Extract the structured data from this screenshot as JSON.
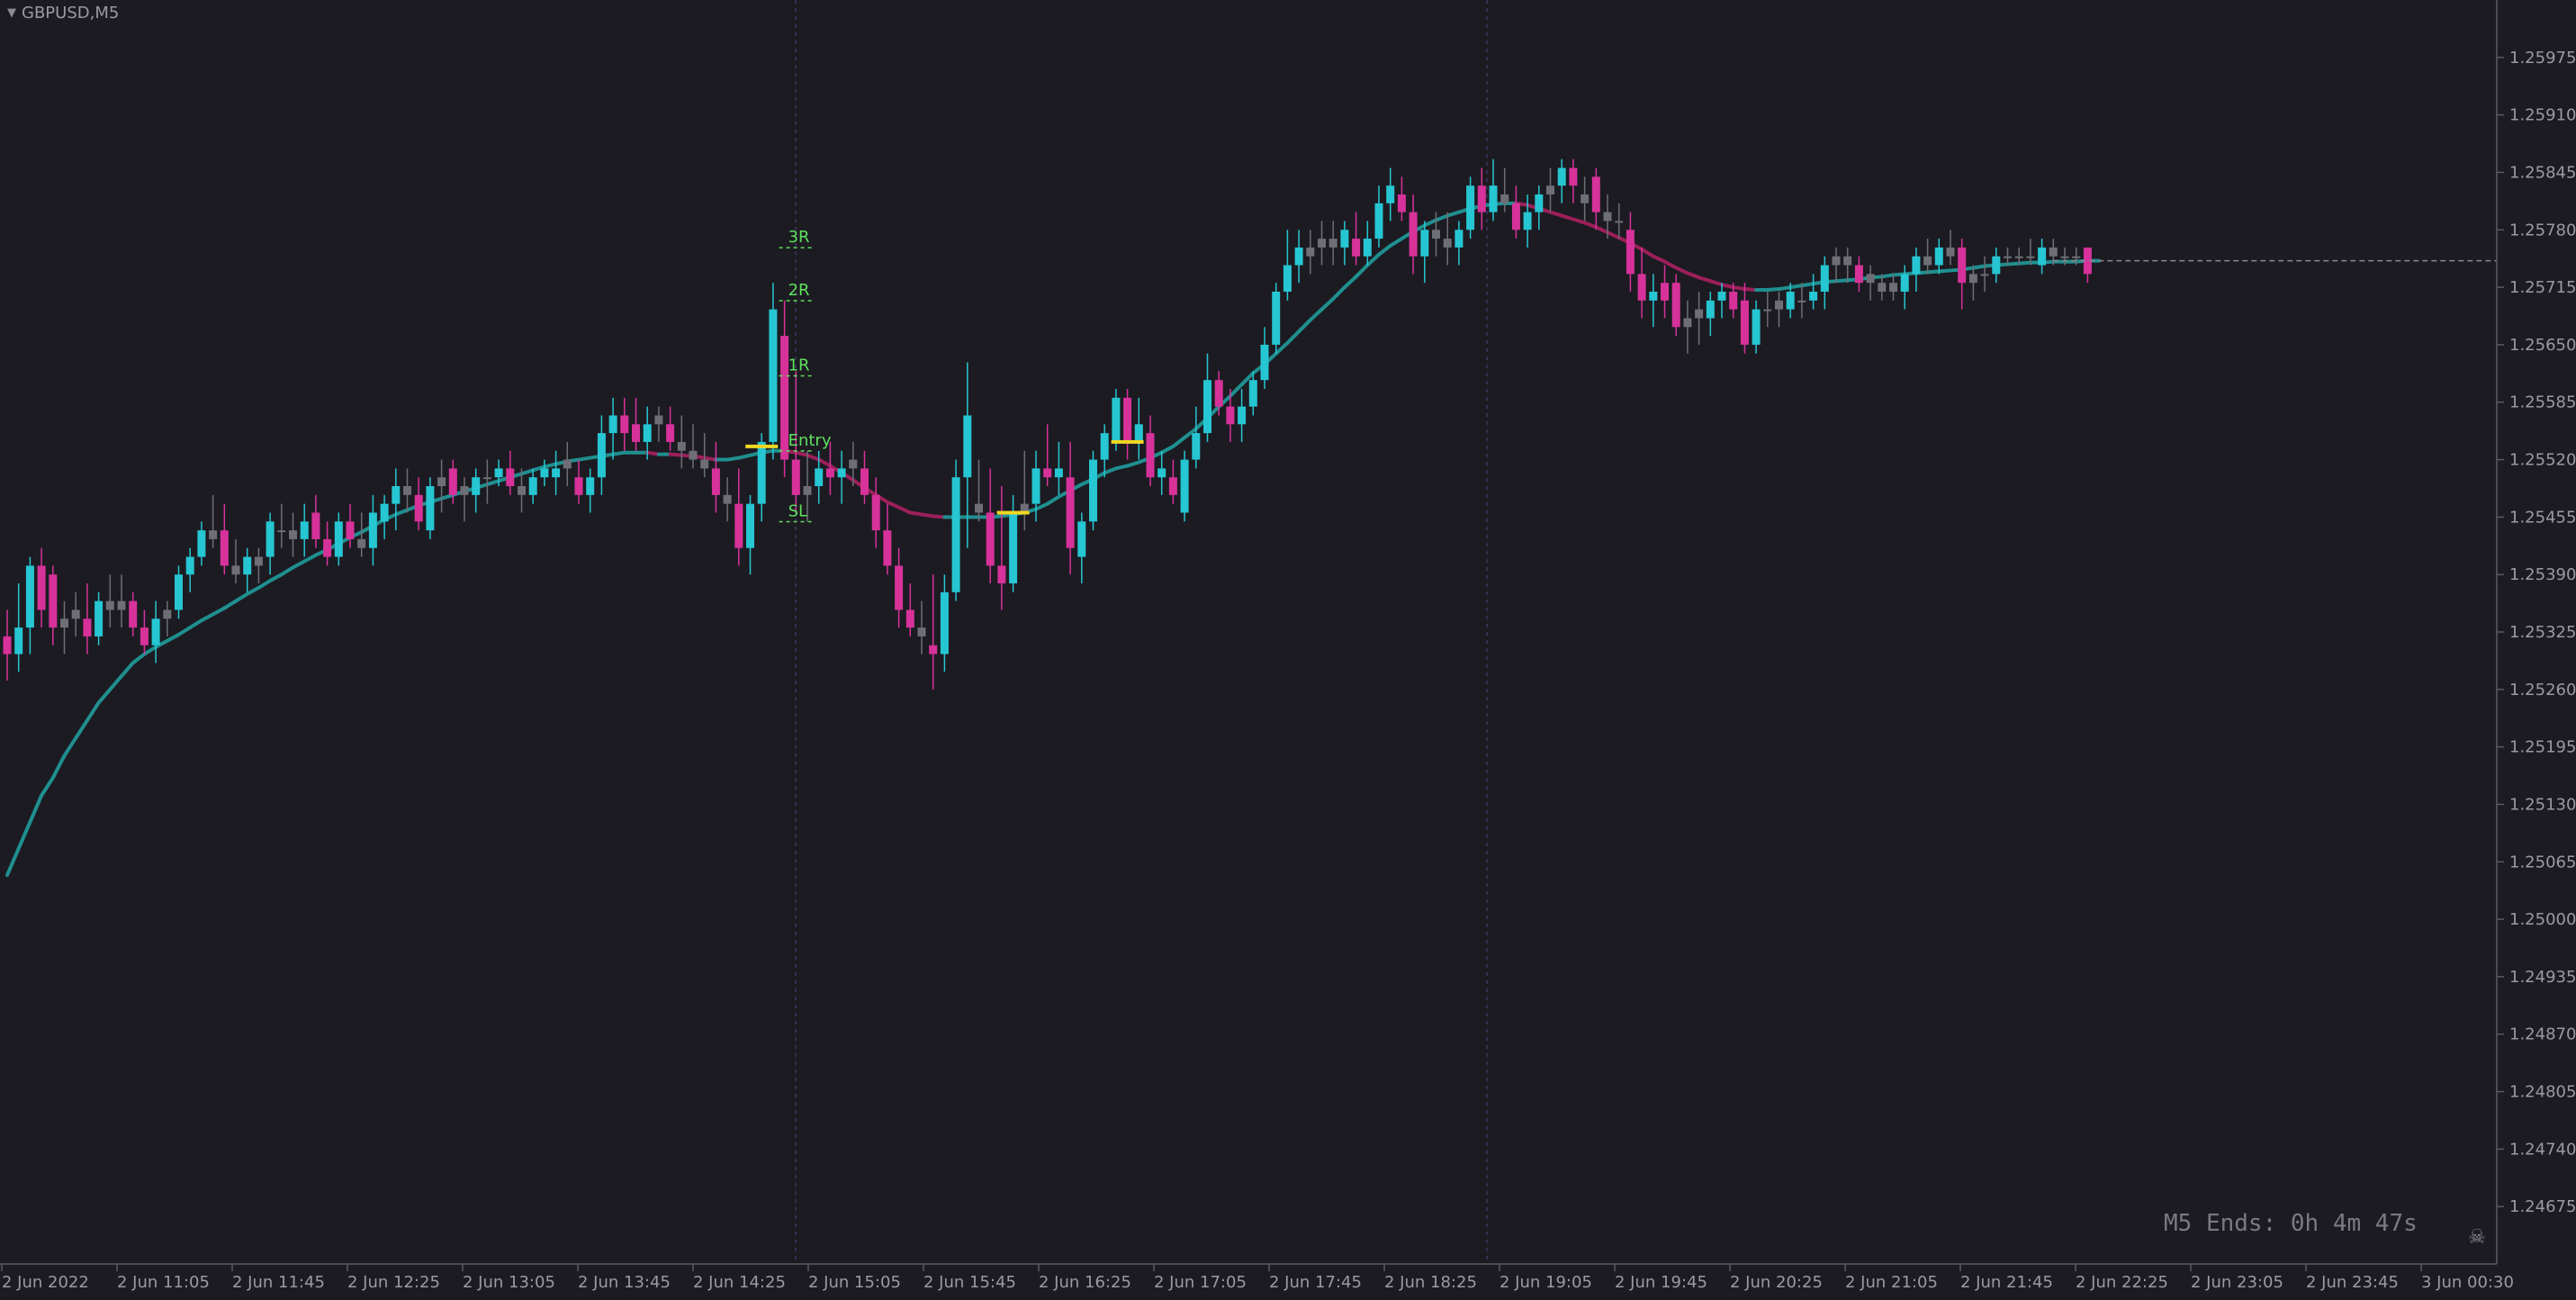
{
  "window": {
    "symbol": "GBPUSD,M5",
    "timer": "M5 Ends: 0h 4m 47s",
    "corner_icon": "skull-crossbones-icon"
  },
  "chart_data": {
    "type": "candlestick",
    "ylim": [
      1.2461,
      1.2604
    ],
    "price_labels": [
      "1.25975",
      "1.25910",
      "1.25845",
      "1.25780",
      "1.25715",
      "1.25650",
      "1.25585",
      "1.25520",
      "1.25455",
      "1.25390",
      "1.25325",
      "1.25260",
      "1.25195",
      "1.25130",
      "1.25065",
      "1.25000",
      "1.24935",
      "1.24870",
      "1.24805",
      "1.24740",
      "1.24675"
    ],
    "time_labels": [
      "2 Jun 2022",
      "2 Jun 11:05",
      "2 Jun 11:45",
      "2 Jun 12:25",
      "2 Jun 13:05",
      "2 Jun 13:45",
      "2 Jun 14:25",
      "2 Jun 15:05",
      "2 Jun 15:45",
      "2 Jun 16:25",
      "2 Jun 17:05",
      "2 Jun 17:45",
      "2 Jun 18:25",
      "2 Jun 19:05",
      "2 Jun 19:45",
      "2 Jun 20:25",
      "2 Jun 21:05",
      "2 Jun 21:45",
      "2 Jun 22:25",
      "2 Jun 23:05",
      "2 Jun 23:45",
      "3 Jun 00:30"
    ],
    "grid": false,
    "colors": {
      "bull": "#26c6d2",
      "bear": "#d6329a",
      "neutral": "#6e6e76",
      "ma_up": "#1f8f8f",
      "ma_down": "#9c1f5a",
      "level": "#f0d722",
      "target": "#5ee05e"
    },
    "candles": [
      [
        1.2532,
        1.2535,
        1.2527,
        1.253
      ],
      [
        1.253,
        1.2538,
        1.2528,
        1.2533
      ],
      [
        1.2533,
        1.2541,
        1.253,
        1.254
      ],
      [
        1.254,
        1.2542,
        1.2533,
        1.2535
      ],
      [
        1.2539,
        1.254,
        1.2531,
        1.2533
      ],
      [
        1.2533,
        1.2536,
        1.253,
        1.2534
      ],
      [
        1.2535,
        1.2537,
        1.2532,
        1.2534
      ],
      [
        1.2534,
        1.2538,
        1.253,
        1.2532
      ],
      [
        1.2532,
        1.2537,
        1.2531,
        1.2536
      ],
      [
        1.2536,
        1.2539,
        1.2533,
        1.2535
      ],
      [
        1.2535,
        1.2539,
        1.2533,
        1.2536
      ],
      [
        1.2536,
        1.2537,
        1.2532,
        1.2533
      ],
      [
        1.2533,
        1.2535,
        1.253,
        1.2531
      ],
      [
        1.2531,
        1.2536,
        1.2529,
        1.2534
      ],
      [
        1.2534,
        1.2536,
        1.2532,
        1.2535
      ],
      [
        1.2535,
        1.254,
        1.2534,
        1.2539
      ],
      [
        1.2539,
        1.2542,
        1.2537,
        1.2541
      ],
      [
        1.2541,
        1.2545,
        1.254,
        1.2544
      ],
      [
        1.2544,
        1.2548,
        1.2542,
        1.2543
      ],
      [
        1.2544,
        1.2547,
        1.2539,
        1.254
      ],
      [
        1.254,
        1.2543,
        1.2538,
        1.2539
      ],
      [
        1.2539,
        1.2542,
        1.2537,
        1.2541
      ],
      [
        1.254,
        1.2542,
        1.2538,
        1.2541
      ],
      [
        1.2541,
        1.2546,
        1.2539,
        1.2545
      ],
      [
        1.2544,
        1.2547,
        1.2542,
        1.2544
      ],
      [
        1.2544,
        1.2546,
        1.2541,
        1.2543
      ],
      [
        1.2543,
        1.2547,
        1.2541,
        1.2545
      ],
      [
        1.2546,
        1.2548,
        1.2542,
        1.2543
      ],
      [
        1.2543,
        1.2545,
        1.254,
        1.2541
      ],
      [
        1.2541,
        1.2546,
        1.254,
        1.2545
      ],
      [
        1.2545,
        1.2547,
        1.2542,
        1.2543
      ],
      [
        1.2543,
        1.2546,
        1.2541,
        1.2542
      ],
      [
        1.2542,
        1.2548,
        1.254,
        1.2546
      ],
      [
        1.2545,
        1.2548,
        1.2543,
        1.2547
      ],
      [
        1.2547,
        1.2551,
        1.2544,
        1.2549
      ],
      [
        1.2549,
        1.2551,
        1.2546,
        1.2548
      ],
      [
        1.2548,
        1.255,
        1.2544,
        1.2545
      ],
      [
        1.2544,
        1.255,
        1.2543,
        1.2549
      ],
      [
        1.2549,
        1.2552,
        1.2546,
        1.255
      ],
      [
        1.2551,
        1.2552,
        1.2547,
        1.2548
      ],
      [
        1.2549,
        1.255,
        1.2545,
        1.2548
      ],
      [
        1.2548,
        1.2551,
        1.2546,
        1.255
      ],
      [
        1.255,
        1.2552,
        1.2547,
        1.255
      ],
      [
        1.255,
        1.2552,
        1.2549,
        1.2551
      ],
      [
        1.2551,
        1.2553,
        1.2548,
        1.2549
      ],
      [
        1.2549,
        1.2551,
        1.2546,
        1.2548
      ],
      [
        1.2548,
        1.2551,
        1.2547,
        1.255
      ],
      [
        1.255,
        1.2552,
        1.2549,
        1.2551
      ],
      [
        1.255,
        1.2553,
        1.2548,
        1.2551
      ],
      [
        1.2551,
        1.2554,
        1.2549,
        1.2552
      ],
      [
        1.255,
        1.2552,
        1.2547,
        1.2548
      ],
      [
        1.2548,
        1.2551,
        1.2546,
        1.255
      ],
      [
        1.255,
        1.2557,
        1.2548,
        1.2555
      ],
      [
        1.2555,
        1.2559,
        1.2552,
        1.2557
      ],
      [
        1.2557,
        1.2559,
        1.2553,
        1.2555
      ],
      [
        1.2556,
        1.2559,
        1.2553,
        1.2554
      ],
      [
        1.2554,
        1.2558,
        1.2552,
        1.2556
      ],
      [
        1.2556,
        1.2558,
        1.2554,
        1.2557
      ],
      [
        1.2556,
        1.2558,
        1.2553,
        1.2554
      ],
      [
        1.2554,
        1.2557,
        1.2551,
        1.2553
      ],
      [
        1.2553,
        1.2556,
        1.2551,
        1.2552
      ],
      [
        1.2552,
        1.2555,
        1.255,
        1.2551
      ],
      [
        1.2551,
        1.2554,
        1.2546,
        1.2548
      ],
      [
        1.2548,
        1.255,
        1.2545,
        1.2547
      ],
      [
        1.2547,
        1.2551,
        1.254,
        1.2542
      ],
      [
        1.2542,
        1.2548,
        1.2539,
        1.2547
      ],
      [
        1.2547,
        1.2555,
        1.2545,
        1.2554
      ],
      [
        1.2554,
        1.2572,
        1.2552,
        1.2569
      ],
      [
        1.2566,
        1.257,
        1.255,
        1.2552
      ],
      [
        1.2552,
        1.2562,
        1.2546,
        1.2548
      ],
      [
        1.2548,
        1.2553,
        1.2545,
        1.2549
      ],
      [
        1.2549,
        1.2553,
        1.2547,
        1.2551
      ],
      [
        1.2551,
        1.2554,
        1.2548,
        1.255
      ],
      [
        1.255,
        1.2553,
        1.2547,
        1.2551
      ],
      [
        1.2552,
        1.2554,
        1.2549,
        1.2551
      ],
      [
        1.2551,
        1.2553,
        1.2547,
        1.2548
      ],
      [
        1.2548,
        1.255,
        1.2542,
        1.2544
      ],
      [
        1.2544,
        1.2547,
        1.2539,
        1.254
      ],
      [
        1.254,
        1.2542,
        1.2533,
        1.2535
      ],
      [
        1.2535,
        1.2538,
        1.2532,
        1.2533
      ],
      [
        1.2533,
        1.2536,
        1.253,
        1.2532
      ],
      [
        1.2531,
        1.2539,
        1.2526,
        1.253
      ],
      [
        1.253,
        1.2539,
        1.2528,
        1.2537
      ],
      [
        1.2537,
        1.2552,
        1.2536,
        1.255
      ],
      [
        1.255,
        1.2563,
        1.2542,
        1.2557
      ],
      [
        1.2547,
        1.2552,
        1.2545,
        1.2546
      ],
      [
        1.2546,
        1.2551,
        1.2538,
        1.254
      ],
      [
        1.254,
        1.2549,
        1.2535,
        1.2538
      ],
      [
        1.2538,
        1.2548,
        1.2537,
        1.2546
      ],
      [
        1.2546,
        1.2553,
        1.2544,
        1.2547
      ],
      [
        1.2547,
        1.2553,
        1.2545,
        1.2551
      ],
      [
        1.2551,
        1.2556,
        1.2549,
        1.255
      ],
      [
        1.255,
        1.2554,
        1.2548,
        1.2551
      ],
      [
        1.255,
        1.2554,
        1.2539,
        1.2542
      ],
      [
        1.2541,
        1.2546,
        1.2538,
        1.2545
      ],
      [
        1.2545,
        1.2553,
        1.2544,
        1.2552
      ],
      [
        1.2552,
        1.2556,
        1.255,
        1.2555
      ],
      [
        1.2554,
        1.256,
        1.2553,
        1.2559
      ],
      [
        1.2559,
        1.256,
        1.2552,
        1.2554
      ],
      [
        1.2554,
        1.2559,
        1.2552,
        1.2556
      ],
      [
        1.2555,
        1.2557,
        1.2549,
        1.255
      ],
      [
        1.255,
        1.2553,
        1.2548,
        1.2551
      ],
      [
        1.255,
        1.2552,
        1.2547,
        1.2548
      ],
      [
        1.2546,
        1.2553,
        1.2545,
        1.2552
      ],
      [
        1.2552,
        1.2558,
        1.2551,
        1.2555
      ],
      [
        1.2555,
        1.2564,
        1.2554,
        1.2561
      ],
      [
        1.2561,
        1.2562,
        1.2557,
        1.2558
      ],
      [
        1.2558,
        1.256,
        1.2554,
        1.2556
      ],
      [
        1.2556,
        1.256,
        1.2554,
        1.2558
      ],
      [
        1.2558,
        1.2562,
        1.2557,
        1.2561
      ],
      [
        1.2561,
        1.2567,
        1.256,
        1.2565
      ],
      [
        1.2565,
        1.2572,
        1.2564,
        1.2571
      ],
      [
        1.2571,
        1.2578,
        1.257,
        1.2574
      ],
      [
        1.2574,
        1.2578,
        1.2572,
        1.2576
      ],
      [
        1.2575,
        1.2578,
        1.2573,
        1.2576
      ],
      [
        1.2576,
        1.2579,
        1.2574,
        1.2577
      ],
      [
        1.2577,
        1.2579,
        1.2574,
        1.2576
      ],
      [
        1.2576,
        1.2579,
        1.2574,
        1.2578
      ],
      [
        1.2577,
        1.258,
        1.2574,
        1.2575
      ],
      [
        1.2575,
        1.2579,
        1.2574,
        1.2577
      ],
      [
        1.2577,
        1.2583,
        1.2576,
        1.2581
      ],
      [
        1.2581,
        1.2585,
        1.2579,
        1.2583
      ],
      [
        1.2582,
        1.2584,
        1.2579,
        1.258
      ],
      [
        1.258,
        1.2582,
        1.2573,
        1.2575
      ],
      [
        1.2575,
        1.2579,
        1.2572,
        1.2578
      ],
      [
        1.2578,
        1.258,
        1.2575,
        1.2577
      ],
      [
        1.2577,
        1.258,
        1.2574,
        1.2576
      ],
      [
        1.2576,
        1.2579,
        1.2574,
        1.2578
      ],
      [
        1.2578,
        1.2584,
        1.2577,
        1.2583
      ],
      [
        1.2583,
        1.2585,
        1.2578,
        1.258
      ],
      [
        1.258,
        1.2586,
        1.2579,
        1.2583
      ],
      [
        1.2582,
        1.2585,
        1.258,
        1.2581
      ],
      [
        1.2581,
        1.2583,
        1.2577,
        1.2578
      ],
      [
        1.2578,
        1.2582,
        1.2576,
        1.258
      ],
      [
        1.258,
        1.2583,
        1.2578,
        1.2582
      ],
      [
        1.2583,
        1.2585,
        1.258,
        1.2582
      ],
      [
        1.2583,
        1.2586,
        1.2581,
        1.2585
      ],
      [
        1.2585,
        1.2586,
        1.2581,
        1.2583
      ],
      [
        1.2582,
        1.2584,
        1.2579,
        1.2581
      ],
      [
        1.2584,
        1.2585,
        1.2578,
        1.258
      ],
      [
        1.258,
        1.2582,
        1.2577,
        1.2579
      ],
      [
        1.2579,
        1.2581,
        1.2577,
        1.2579
      ],
      [
        1.2578,
        1.258,
        1.2571,
        1.2573
      ],
      [
        1.2573,
        1.2576,
        1.2568,
        1.257
      ],
      [
        1.257,
        1.2573,
        1.2567,
        1.2571
      ],
      [
        1.2572,
        1.2574,
        1.2568,
        1.257
      ],
      [
        1.2572,
        1.2573,
        1.2566,
        1.2567
      ],
      [
        1.2567,
        1.257,
        1.2564,
        1.2568
      ],
      [
        1.2568,
        1.2571,
        1.2565,
        1.2569
      ],
      [
        1.2568,
        1.2571,
        1.2566,
        1.257
      ],
      [
        1.257,
        1.2572,
        1.2568,
        1.2571
      ],
      [
        1.2571,
        1.2572,
        1.2568,
        1.2569
      ],
      [
        1.257,
        1.2572,
        1.2564,
        1.2565
      ],
      [
        1.2565,
        1.257,
        1.2564,
        1.2569
      ],
      [
        1.2569,
        1.2571,
        1.2567,
        1.2569
      ],
      [
        1.2569,
        1.2571,
        1.2567,
        1.257
      ],
      [
        1.2569,
        1.2572,
        1.2568,
        1.2571
      ],
      [
        1.257,
        1.2572,
        1.2568,
        1.257
      ],
      [
        1.257,
        1.2573,
        1.2569,
        1.2571
      ],
      [
        1.2571,
        1.2575,
        1.2569,
        1.2574
      ],
      [
        1.2574,
        1.2576,
        1.2572,
        1.2575
      ],
      [
        1.2575,
        1.2576,
        1.2572,
        1.2574
      ],
      [
        1.2574,
        1.2575,
        1.2571,
        1.2572
      ],
      [
        1.2572,
        1.2574,
        1.257,
        1.2573
      ],
      [
        1.2571,
        1.2573,
        1.257,
        1.2572
      ],
      [
        1.2572,
        1.2573,
        1.257,
        1.2571
      ],
      [
        1.2571,
        1.2574,
        1.2569,
        1.2573
      ],
      [
        1.2573,
        1.2576,
        1.2571,
        1.2575
      ],
      [
        1.2575,
        1.2577,
        1.2573,
        1.2574
      ],
      [
        1.2574,
        1.2577,
        1.2573,
        1.2576
      ],
      [
        1.2575,
        1.2578,
        1.2574,
        1.2576
      ],
      [
        1.2576,
        1.2577,
        1.2569,
        1.2572
      ],
      [
        1.2572,
        1.2574,
        1.257,
        1.2573
      ],
      [
        1.2573,
        1.2575,
        1.2571,
        1.2573
      ],
      [
        1.2573,
        1.2576,
        1.2572,
        1.2575
      ],
      [
        1.2575,
        1.2576,
        1.2574,
        1.2575
      ],
      [
        1.2575,
        1.2576,
        1.2574,
        1.2575
      ],
      [
        1.2575,
        1.2577,
        1.2574,
        1.2575
      ],
      [
        1.2574,
        1.2577,
        1.2573,
        1.2576
      ],
      [
        1.2576,
        1.2577,
        1.2574,
        1.2575
      ],
      [
        1.2575,
        1.2576,
        1.2574,
        1.2575
      ],
      [
        1.2575,
        1.2576,
        1.2574,
        1.2575
      ],
      [
        1.2576,
        1.2576,
        1.2572,
        1.2573
      ]
    ],
    "ma_values": [
      1.2505,
      1.2508,
      1.2511,
      1.2514,
      1.2516,
      1.25185,
      1.25205,
      1.25225,
      1.25245,
      1.2526,
      1.25275,
      1.2529,
      1.253,
      1.25308,
      1.25315,
      1.25322,
      1.2533,
      1.25338,
      1.25345,
      1.25352,
      1.2536,
      1.25368,
      1.25375,
      1.25383,
      1.2539,
      1.25398,
      1.25405,
      1.25412,
      1.25418,
      1.25425,
      1.25432,
      1.25438,
      1.25445,
      1.25452,
      1.25458,
      1.25463,
      1.25468,
      1.25472,
      1.25476,
      1.2548,
      1.25484,
      1.25488,
      1.25492,
      1.25496,
      1.255,
      1.25504,
      1.25508,
      1.25512,
      1.25515,
      1.25518,
      1.2552,
      1.25522,
      1.25524,
      1.25526,
      1.25528,
      1.25528,
      1.25528,
      1.25526,
      1.25526,
      1.25525,
      1.25524,
      1.25522,
      1.2552,
      1.2552,
      1.25522,
      1.25525,
      1.25528,
      1.2553,
      1.2553,
      1.25528,
      1.25525,
      1.2552,
      1.25513,
      1.25505,
      1.25497,
      1.25488,
      1.2548,
      1.25472,
      1.25466,
      1.2546,
      1.25458,
      1.25456,
      1.25455,
      1.25455,
      1.25455,
      1.25455,
      1.25455,
      1.25456,
      1.25458,
      1.2546,
      1.25464,
      1.2547,
      1.25478,
      1.25485,
      1.25492,
      1.25498,
      1.25505,
      1.2551,
      1.25513,
      1.25517,
      1.25522,
      1.25528,
      1.25535,
      1.25545,
      1.25555,
      1.25567,
      1.2558,
      1.25592,
      1.25605,
      1.25618,
      1.25628,
      1.2564,
      1.25652,
      1.25665,
      1.25678,
      1.2569,
      1.25702,
      1.25715,
      1.25727,
      1.2574,
      1.25752,
      1.25762,
      1.2577,
      1.25778,
      1.25785,
      1.25791,
      1.25796,
      1.258,
      1.25804,
      1.25807,
      1.25809,
      1.2581,
      1.2581,
      1.25808,
      1.25804,
      1.258,
      1.25796,
      1.25792,
      1.25788,
      1.25783,
      1.25777,
      1.25771,
      1.25765,
      1.25758,
      1.2575,
      1.25744,
      1.25737,
      1.25731,
      1.25726,
      1.25722,
      1.25718,
      1.25715,
      1.25713,
      1.25712,
      1.25712,
      1.25713,
      1.25715,
      1.25717,
      1.25719,
      1.25721,
      1.25722,
      1.25723,
      1.25724,
      1.25726,
      1.25727,
      1.25729,
      1.2573,
      1.25731,
      1.25732,
      1.25733,
      1.25734,
      1.25735,
      1.25737,
      1.25739,
      1.2574,
      1.25741,
      1.25742,
      1.25743,
      1.25743,
      1.25744,
      1.25744,
      1.25744,
      1.25745,
      1.25745
    ],
    "trade_markers": [
      {
        "kind": "level",
        "candle": 66,
        "price": 1.25535
      },
      {
        "kind": "level",
        "candle": 88,
        "price": 1.2546
      },
      {
        "kind": "level",
        "candle": 98,
        "price": 1.2554
      }
    ],
    "targets": [
      {
        "label": "3R",
        "price": 1.2577
      },
      {
        "label": "2R",
        "price": 1.2571
      },
      {
        "label": "1R",
        "price": 1.25625
      },
      {
        "label": "Entry",
        "price": 1.2554
      },
      {
        "label": "SL",
        "price": 1.2546
      }
    ],
    "current_price": 1.25745
  }
}
